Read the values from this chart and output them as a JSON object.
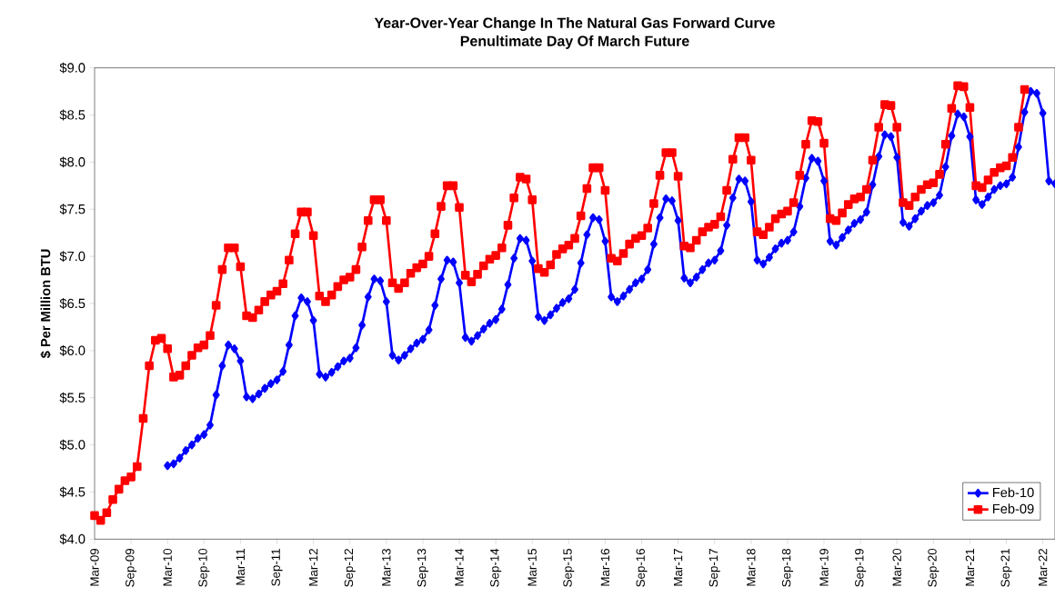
{
  "chart_data": {
    "type": "line",
    "title": "Year-Over-Year Change In The Natural Gas Forward Curve",
    "subtitle": "Penultimate Day Of March Future",
    "ylabel": "$ Per Million BTU",
    "x": [
      "2009-03",
      "2009-04",
      "2009-05",
      "2009-06",
      "2009-07",
      "2009-08",
      "2009-09",
      "2009-10",
      "2009-11",
      "2009-12",
      "2010-01",
      "2010-02",
      "2010-03",
      "2010-04",
      "2010-05",
      "2010-06",
      "2010-07",
      "2010-08",
      "2010-09",
      "2010-10",
      "2010-11",
      "2010-12",
      "2011-01",
      "2011-02",
      "2011-03",
      "2011-04",
      "2011-05",
      "2011-06",
      "2011-07",
      "2011-08",
      "2011-09",
      "2011-10",
      "2011-11",
      "2011-12",
      "2012-01",
      "2012-02",
      "2012-03",
      "2012-04",
      "2012-05",
      "2012-06",
      "2012-07",
      "2012-08",
      "2012-09",
      "2012-10",
      "2012-11",
      "2012-12",
      "2013-01",
      "2013-02",
      "2013-03",
      "2013-04",
      "2013-05",
      "2013-06",
      "2013-07",
      "2013-08",
      "2013-09",
      "2013-10",
      "2013-11",
      "2013-12",
      "2014-01",
      "2014-02",
      "2014-03",
      "2014-04",
      "2014-05",
      "2014-06",
      "2014-07",
      "2014-08",
      "2014-09",
      "2014-10",
      "2014-11",
      "2014-12",
      "2015-01",
      "2015-02",
      "2015-03",
      "2015-04",
      "2015-05",
      "2015-06",
      "2015-07",
      "2015-08",
      "2015-09",
      "2015-10",
      "2015-11",
      "2015-12",
      "2016-01",
      "2016-02",
      "2016-03",
      "2016-04",
      "2016-05",
      "2016-06",
      "2016-07",
      "2016-08",
      "2016-09",
      "2016-10",
      "2016-11",
      "2016-12",
      "2017-01",
      "2017-02",
      "2017-03",
      "2017-04",
      "2017-05",
      "2017-06",
      "2017-07",
      "2017-08",
      "2017-09",
      "2017-10",
      "2017-11",
      "2017-12",
      "2018-01",
      "2018-02",
      "2018-03",
      "2018-04",
      "2018-05",
      "2018-06",
      "2018-07",
      "2018-08",
      "2018-09",
      "2018-10",
      "2018-11",
      "2018-12",
      "2019-01",
      "2019-02",
      "2019-03",
      "2019-04",
      "2019-05",
      "2019-06",
      "2019-07",
      "2019-08",
      "2019-09",
      "2019-10",
      "2019-11",
      "2019-12",
      "2020-01",
      "2020-02",
      "2020-03",
      "2020-04",
      "2020-05",
      "2020-06",
      "2020-07",
      "2020-08",
      "2020-09",
      "2020-10",
      "2020-11",
      "2020-12",
      "2021-01",
      "2021-02",
      "2021-03",
      "2021-04",
      "2021-05",
      "2021-06",
      "2021-07",
      "2021-08",
      "2021-09",
      "2021-10",
      "2021-11",
      "2021-12",
      "2022-01",
      "2022-02",
      "2022-03",
      "2022-04",
      "2022-05"
    ],
    "series": [
      {
        "name": "Feb-10",
        "color": "#0000ff",
        "marker": "diamond",
        "values": [
          null,
          null,
          null,
          null,
          null,
          null,
          null,
          null,
          null,
          null,
          null,
          null,
          4.78,
          4.8,
          4.86,
          4.94,
          5.0,
          5.07,
          5.11,
          5.21,
          5.53,
          5.84,
          6.06,
          6.02,
          5.89,
          5.51,
          5.49,
          5.54,
          5.6,
          5.65,
          5.69,
          5.78,
          6.06,
          6.37,
          6.56,
          6.52,
          6.32,
          5.75,
          5.72,
          5.77,
          5.83,
          5.89,
          5.92,
          6.03,
          6.27,
          6.57,
          6.76,
          6.74,
          6.52,
          5.95,
          5.9,
          5.95,
          6.02,
          6.08,
          6.12,
          6.22,
          6.48,
          6.76,
          6.96,
          6.94,
          6.72,
          6.14,
          6.1,
          6.16,
          6.23,
          6.29,
          6.33,
          6.44,
          6.7,
          6.98,
          7.19,
          7.17,
          6.95,
          6.36,
          6.32,
          6.38,
          6.45,
          6.51,
          6.55,
          6.65,
          6.93,
          7.23,
          7.41,
          7.39,
          7.16,
          6.57,
          6.52,
          6.58,
          6.65,
          6.72,
          6.76,
          6.86,
          7.13,
          7.41,
          7.61,
          7.59,
          7.38,
          6.77,
          6.72,
          6.78,
          6.86,
          6.93,
          6.96,
          7.06,
          7.33,
          7.62,
          7.82,
          7.8,
          7.58,
          6.96,
          6.92,
          6.99,
          7.08,
          7.14,
          7.17,
          7.26,
          7.53,
          7.83,
          8.04,
          8.01,
          7.8,
          7.16,
          7.12,
          7.2,
          7.28,
          7.35,
          7.39,
          7.47,
          7.76,
          8.06,
          8.29,
          8.27,
          8.05,
          7.36,
          7.32,
          7.4,
          7.48,
          7.54,
          7.57,
          7.65,
          7.95,
          8.28,
          8.51,
          8.48,
          8.27,
          7.6,
          7.55,
          7.63,
          7.71,
          7.75,
          7.77,
          7.84,
          8.16,
          8.53,
          8.75,
          8.73,
          8.52,
          7.8,
          7.77
        ]
      },
      {
        "name": "Feb-09",
        "color": "#ff0000",
        "marker": "square",
        "values": [
          4.25,
          4.2,
          4.28,
          4.42,
          4.53,
          4.62,
          4.66,
          4.77,
          5.28,
          5.84,
          6.11,
          6.13,
          6.02,
          5.72,
          5.74,
          5.84,
          5.95,
          6.03,
          6.06,
          6.16,
          6.48,
          6.86,
          7.09,
          7.09,
          6.89,
          6.37,
          6.35,
          6.43,
          6.52,
          6.59,
          6.63,
          6.71,
          6.96,
          7.24,
          7.47,
          7.47,
          7.22,
          6.58,
          6.52,
          6.59,
          6.68,
          6.75,
          6.78,
          6.86,
          7.1,
          7.38,
          7.6,
          7.6,
          7.38,
          6.72,
          6.66,
          6.72,
          6.82,
          6.88,
          6.92,
          7.0,
          7.24,
          7.53,
          7.75,
          7.75,
          7.52,
          6.8,
          6.73,
          6.81,
          6.9,
          6.97,
          7.01,
          7.09,
          7.33,
          7.62,
          7.84,
          7.82,
          7.6,
          6.87,
          6.83,
          6.91,
          7.02,
          7.08,
          7.12,
          7.19,
          7.43,
          7.72,
          7.94,
          7.94,
          7.7,
          6.98,
          6.95,
          7.03,
          7.13,
          7.19,
          7.22,
          7.3,
          7.56,
          7.86,
          8.1,
          8.1,
          7.85,
          7.11,
          7.09,
          7.17,
          7.26,
          7.31,
          7.34,
          7.42,
          7.7,
          8.03,
          8.26,
          8.26,
          8.02,
          7.26,
          7.23,
          7.31,
          7.4,
          7.45,
          7.48,
          7.57,
          7.86,
          8.19,
          8.44,
          8.43,
          8.2,
          7.4,
          7.38,
          7.46,
          7.55,
          7.61,
          7.63,
          7.71,
          8.02,
          8.37,
          8.61,
          8.6,
          8.37,
          7.57,
          7.54,
          7.63,
          7.71,
          7.76,
          7.78,
          7.87,
          8.19,
          8.57,
          8.81,
          8.8,
          8.58,
          7.75,
          7.73,
          7.81,
          7.89,
          7.94,
          7.96,
          8.05,
          8.37,
          8.77,
          null,
          null,
          null,
          null,
          null
        ]
      }
    ],
    "xlim": [
      "2009-03",
      "2022-05"
    ],
    "xticks": [
      {
        "value": "2009-03",
        "label": "Mar-09"
      },
      {
        "value": "2009-09",
        "label": "Sep-09"
      },
      {
        "value": "2010-03",
        "label": "Mar-10"
      },
      {
        "value": "2010-09",
        "label": "Sep-10"
      },
      {
        "value": "2011-03",
        "label": "Mar-11"
      },
      {
        "value": "2011-09",
        "label": "Sep-11"
      },
      {
        "value": "2012-03",
        "label": "Mar-12"
      },
      {
        "value": "2012-09",
        "label": "Sep-12"
      },
      {
        "value": "2013-03",
        "label": "Mar-13"
      },
      {
        "value": "2013-09",
        "label": "Sep-13"
      },
      {
        "value": "2014-03",
        "label": "Mar-14"
      },
      {
        "value": "2014-09",
        "label": "Sep-14"
      },
      {
        "value": "2015-03",
        "label": "Mar-15"
      },
      {
        "value": "2015-09",
        "label": "Sep-15"
      },
      {
        "value": "2016-03",
        "label": "Mar-16"
      },
      {
        "value": "2016-09",
        "label": "Sep-16"
      },
      {
        "value": "2017-03",
        "label": "Mar-17"
      },
      {
        "value": "2017-09",
        "label": "Sep-17"
      },
      {
        "value": "2018-03",
        "label": "Mar-18"
      },
      {
        "value": "2018-09",
        "label": "Sep-18"
      },
      {
        "value": "2019-03",
        "label": "Mar-19"
      },
      {
        "value": "2019-09",
        "label": "Sep-19"
      },
      {
        "value": "2020-03",
        "label": "Mar-20"
      },
      {
        "value": "2020-09",
        "label": "Sep-20"
      },
      {
        "value": "2021-03",
        "label": "Mar-21"
      },
      {
        "value": "2021-09",
        "label": "Sep-21"
      },
      {
        "value": "2022-03",
        "label": "Mar-22"
      }
    ],
    "ylim": [
      4,
      9
    ],
    "yticks": [
      {
        "value": 4,
        "label": "$4.0"
      },
      {
        "value": 4.5,
        "label": "$4.5"
      },
      {
        "value": 5,
        "label": "$5.0"
      },
      {
        "value": 5.5,
        "label": "$5.5"
      },
      {
        "value": 6,
        "label": "$6.0"
      },
      {
        "value": 6.5,
        "label": "$6.5"
      },
      {
        "value": 7,
        "label": "$7.0"
      },
      {
        "value": 7.5,
        "label": "$7.5"
      },
      {
        "value": 8,
        "label": "$8.0"
      },
      {
        "value": 8.5,
        "label": "$8.5"
      },
      {
        "value": 9,
        "label": "$9.0"
      }
    ],
    "legend": "bottom right",
    "line_style": "solid"
  }
}
